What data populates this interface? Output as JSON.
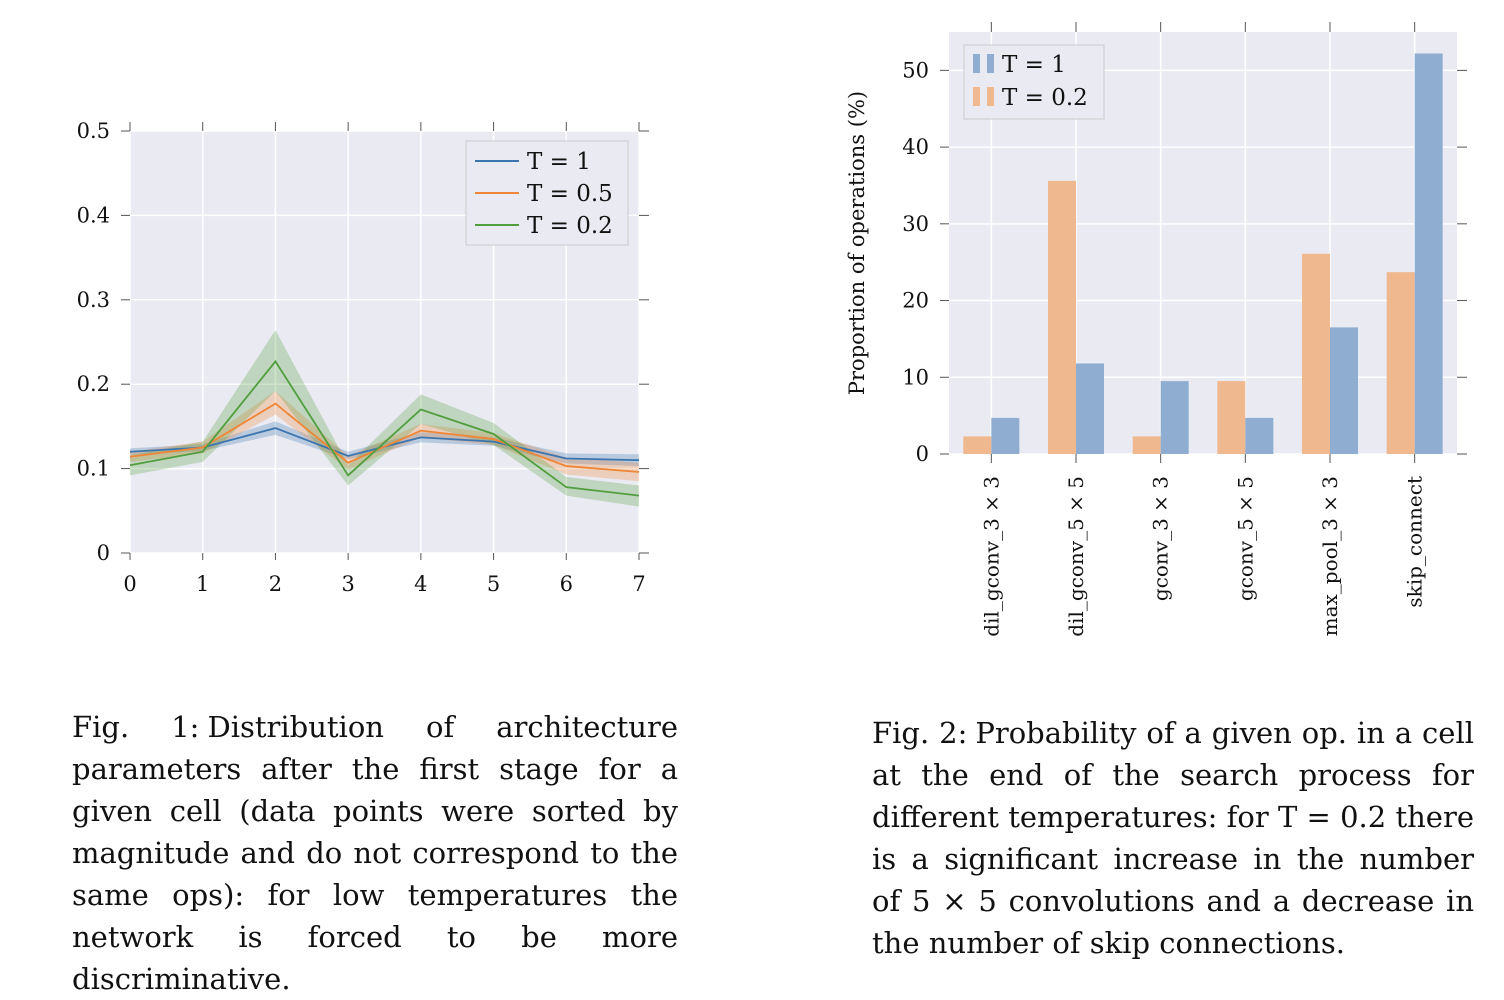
{
  "chart_data": [
    {
      "type": "line",
      "title": "",
      "xlabel": "",
      "ylabel": "",
      "x": [
        0,
        1,
        2,
        3,
        4,
        5,
        6,
        7
      ],
      "xlim": [
        0,
        7
      ],
      "ylim": [
        0,
        0.5
      ],
      "xticks": [
        "0",
        "1",
        "2",
        "3",
        "4",
        "5",
        "6",
        "7"
      ],
      "yticks": [
        "0",
        "0.1",
        "0.2",
        "0.3",
        "0.4",
        "0.5"
      ],
      "grid": true,
      "legend_position": "top-right",
      "series": [
        {
          "name": "T = 1",
          "color": "#3b75af",
          "values": [
            0.12,
            0.125,
            0.148,
            0.115,
            0.137,
            0.132,
            0.112,
            0.11
          ],
          "lower": [
            0.116,
            0.121,
            0.14,
            0.111,
            0.131,
            0.127,
            0.106,
            0.103
          ],
          "upper": [
            0.124,
            0.129,
            0.156,
            0.12,
            0.143,
            0.137,
            0.118,
            0.117
          ]
        },
        {
          "name": "T = 0.5",
          "color": "#ef8636",
          "values": [
            0.114,
            0.125,
            0.177,
            0.107,
            0.145,
            0.135,
            0.103,
            0.096
          ],
          "lower": [
            0.108,
            0.118,
            0.164,
            0.099,
            0.137,
            0.128,
            0.093,
            0.085
          ],
          "upper": [
            0.12,
            0.132,
            0.192,
            0.115,
            0.153,
            0.142,
            0.113,
            0.107
          ]
        },
        {
          "name": "T = 0.2",
          "color": "#519e3e",
          "values": [
            0.104,
            0.12,
            0.227,
            0.092,
            0.17,
            0.141,
            0.078,
            0.068
          ],
          "lower": [
            0.092,
            0.108,
            0.192,
            0.08,
            0.153,
            0.128,
            0.068,
            0.055
          ],
          "upper": [
            0.116,
            0.132,
            0.264,
            0.104,
            0.188,
            0.154,
            0.09,
            0.08
          ]
        }
      ]
    },
    {
      "type": "bar",
      "title": "",
      "xlabel": "",
      "ylabel": "Proportion of operations (%)",
      "categories": [
        "dil_gconv_3 × 3",
        "dil_gconv_5 × 5",
        "gconv_3 × 3",
        "gconv_5 × 5",
        "max_pool_3 × 3",
        "skip_connect"
      ],
      "ylim": [
        0,
        55
      ],
      "yticks": [
        "0",
        "10",
        "20",
        "30",
        "40",
        "50"
      ],
      "grid": true,
      "legend_position": "top-left",
      "series": [
        {
          "name": "T = 1",
          "color": "#8eadd0",
          "values": [
            4.7,
            11.8,
            9.5,
            4.7,
            16.5,
            52.2
          ]
        },
        {
          "name": "T = 0.2",
          "color": "#f0b88e",
          "values": [
            2.3,
            35.6,
            2.3,
            9.5,
            26.1,
            23.7
          ]
        }
      ]
    }
  ],
  "captions": {
    "fig1": {
      "label": "Fig. 1:",
      "text": "Distribution of architecture parameters after the first stage for a given cell (data points were sorted by magnitude and do not correspond to the same ops): for low temperatures the network is forced to be more discriminative."
    },
    "fig2": {
      "label": "Fig. 2:",
      "text": "Probability of a given op. in a cell at the end of the search process for different temperatures: for T = 0.2 there is a significant increase in the number of 5 × 5 convolutions and a decrease in the number of skip connections."
    }
  }
}
